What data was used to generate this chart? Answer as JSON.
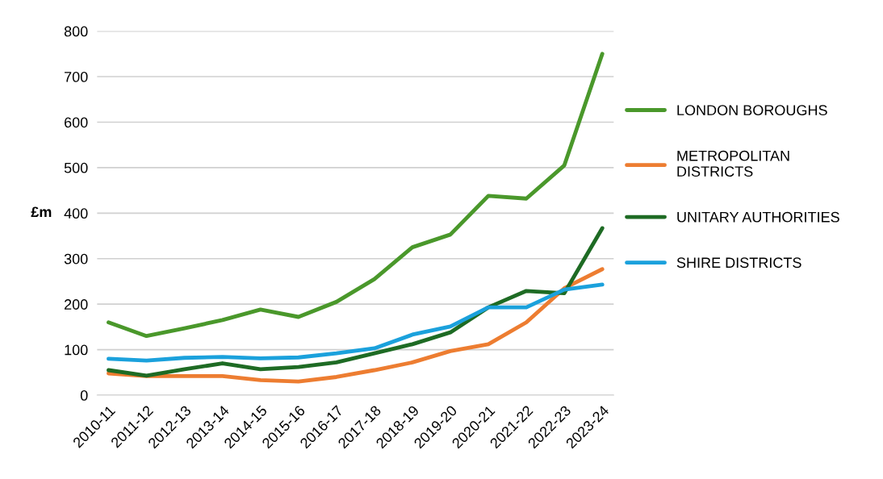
{
  "chart_data": {
    "type": "line",
    "ylabel": "£m",
    "categories": [
      "2010-11",
      "2011-12",
      "2012-13",
      "2013-14",
      "2014-15",
      "2015-16",
      "2016-17",
      "2017-18",
      "2018-19",
      "2019-20",
      "2020-21",
      "2021-22",
      "2022-23",
      "2023-24"
    ],
    "series": [
      {
        "name": "LONDON BOROUGHS",
        "color": "#4a982b",
        "values": [
          160,
          130,
          147,
          165,
          188,
          172,
          205,
          255,
          325,
          353,
          438,
          432,
          505,
          750
        ]
      },
      {
        "name": "METROPOLITAN\nDISTRICTS",
        "color": "#ed7d31",
        "values": [
          48,
          42,
          42,
          42,
          33,
          30,
          40,
          55,
          72,
          97,
          112,
          160,
          235,
          277
        ]
      },
      {
        "name": "UNITARY AUTHORITIES",
        "color": "#1e6b24",
        "values": [
          55,
          43,
          57,
          70,
          57,
          62,
          72,
          92,
          112,
          138,
          193,
          229,
          224,
          367
        ]
      },
      {
        "name": "SHIRE DISTRICTS",
        "color": "#1ba1dc",
        "values": [
          80,
          76,
          82,
          84,
          81,
          83,
          92,
          103,
          133,
          151,
          193,
          193,
          232,
          243
        ]
      }
    ],
    "ylim": [
      0,
      800
    ],
    "yticks": [
      0,
      100,
      200,
      300,
      400,
      500,
      600,
      700,
      800
    ],
    "grid": "y",
    "legend": "right",
    "marker": "none",
    "line_style": "solid"
  }
}
